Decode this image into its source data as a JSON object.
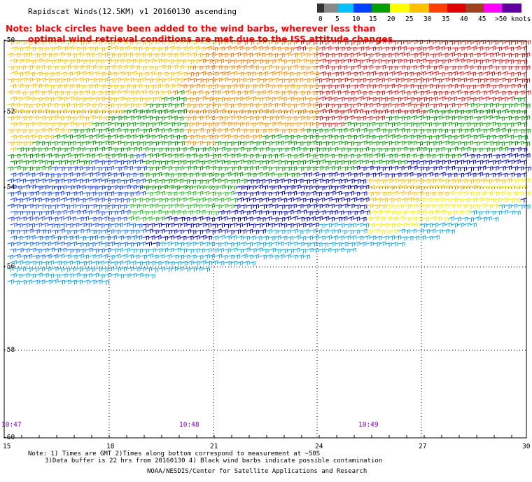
{
  "title": "Rapidscat Winds(12.5KM) v1 20160130 ascending",
  "note": {
    "line1": "Note: black circles have been added to the wind barbs, wherever less than",
    "line2": "optimal wind retrieval conditions are met due to the ISS attitude changes."
  },
  "colorscale": {
    "labels": [
      "0",
      "5",
      "10",
      "15",
      "20",
      "25",
      "30",
      "35",
      "40",
      "45",
      ">50 knots"
    ],
    "colors": [
      "#555555",
      "#00b0f0",
      "#0050ff",
      "#00a000",
      "#ffff00",
      "#ffc000",
      "#ff6a00",
      "#ff0000",
      "#c04020",
      "#ff00ff",
      "#6000a0"
    ]
  },
  "map": {
    "lat_labels": [
      "-50",
      "-52",
      "-54",
      "-56",
      "-58",
      "-60"
    ],
    "lon_labels": [
      "15",
      "18",
      "21",
      "24",
      "27",
      "30"
    ],
    "time_labels": [
      "10:47",
      "10:48",
      "10:49"
    ]
  },
  "footer": {
    "line1": "Note: 1) Times are GMT 2)Times along bottom correspond to measurement at ~50S",
    "line2": "3)Data buffer is 22 hrs from 20160130 4) Black wind barbs indicate possible contamination",
    "line3": "NOAA/NESDIS/Center for Satellite Applications and Research"
  }
}
